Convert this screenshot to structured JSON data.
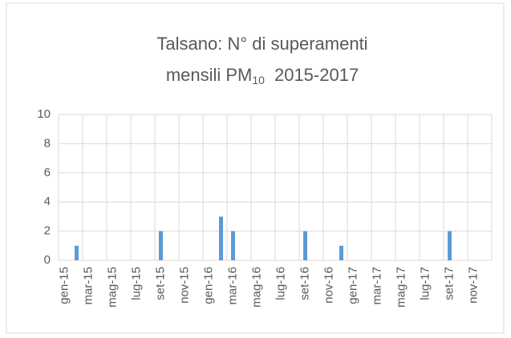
{
  "chart_data": {
    "type": "bar",
    "title": {
      "line1": "Talsano: N° di superamenti",
      "line2": "mensili PM",
      "subscript": "10",
      "line2_end": "2015-2017"
    },
    "categories": [
      "gen-15",
      null,
      "mar-15",
      null,
      "mag-15",
      null,
      "lug-15",
      null,
      "set-15",
      null,
      "nov-15",
      null,
      "gen-16",
      null,
      "mar-16",
      null,
      "mag-16",
      null,
      "lug-16",
      null,
      "set-16",
      null,
      "nov-16",
      null,
      "gen-17",
      null,
      "mar-17",
      null,
      "mag-17",
      null,
      "lug-17",
      null,
      "set-17",
      null,
      "nov-17",
      null
    ],
    "values": [
      0,
      1,
      0,
      0,
      0,
      0,
      0,
      0,
      2,
      0,
      0,
      0,
      0,
      3,
      2,
      0,
      0,
      0,
      0,
      0,
      2,
      0,
      0,
      1,
      0,
      0,
      0,
      0,
      0,
      0,
      0,
      0,
      2,
      0,
      0,
      0
    ],
    "color": "#5b9bd5",
    "ylim": [
      0,
      10
    ],
    "yticks": [
      0,
      2,
      4,
      6,
      8,
      10
    ],
    "grid": true
  }
}
